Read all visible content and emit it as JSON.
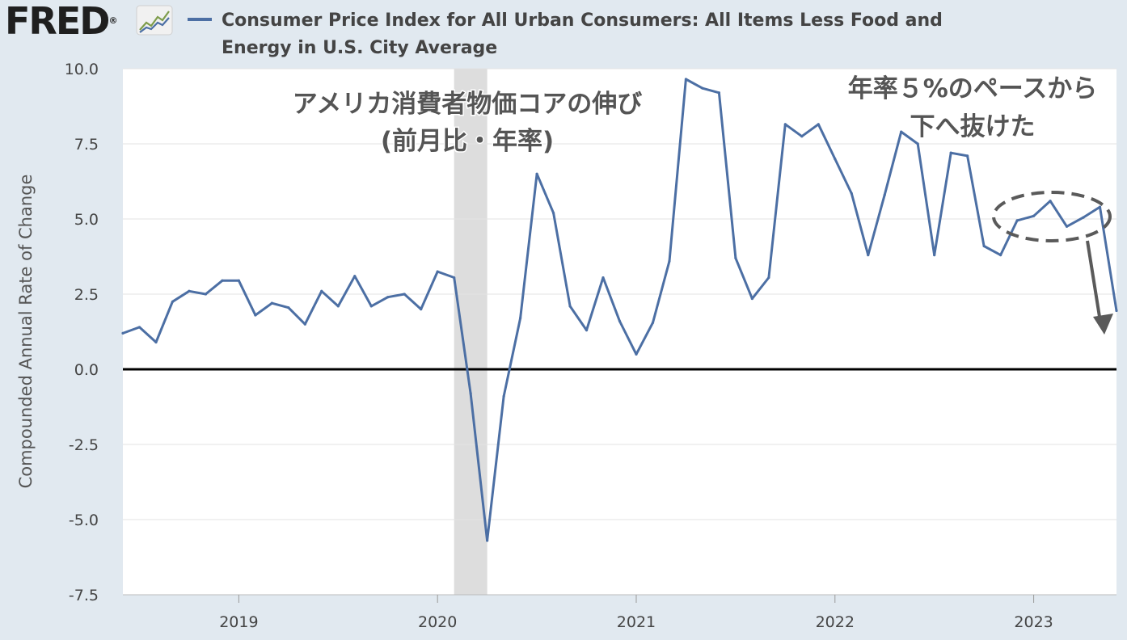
{
  "brand": {
    "logo_text": "FRED",
    "registered_mark": "®",
    "logo_icon": "line-graph-icon"
  },
  "legend": {
    "series_name": "Consumer Price Index for All Urban Consumers: All Items Less Food and Energy in U.S. City Average"
  },
  "colors": {
    "series": "#4c6fa4",
    "recession_shading": "#dddddd",
    "zero_line": "#000000",
    "grid": "#e3e3e3",
    "page_background": "#e1e9f0",
    "annotation": "#555555"
  },
  "chart_data": {
    "type": "line",
    "ylabel": "Compounded Annual Rate of Change",
    "xlabel": "",
    "ylim": [
      -7.5,
      10.0
    ],
    "yticks": [
      "10.0",
      "7.5",
      "5.0",
      "2.5",
      "0.0",
      "-2.5",
      "-5.0",
      "-7.5"
    ],
    "xticks": [
      "2019",
      "2020",
      "2021",
      "2022",
      "2023"
    ],
    "grid": true,
    "x_start": "2018-06",
    "x_end": "2023-06",
    "recession": {
      "start": "2020-02",
      "end": "2020-04"
    },
    "series": [
      {
        "name": "Consumer Price Index for All Urban Consumers: All Items Less Food and Energy in U.S. City Average",
        "points": [
          [
            "2018-06",
            1.2
          ],
          [
            "2018-07",
            1.4
          ],
          [
            "2018-08",
            0.9
          ],
          [
            "2018-09",
            2.25
          ],
          [
            "2018-10",
            2.6
          ],
          [
            "2018-11",
            2.5
          ],
          [
            "2018-12",
            2.95
          ],
          [
            "2019-01",
            2.95
          ],
          [
            "2019-02",
            1.8
          ],
          [
            "2019-03",
            2.2
          ],
          [
            "2019-04",
            2.05
          ],
          [
            "2019-05",
            1.5
          ],
          [
            "2019-06",
            2.6
          ],
          [
            "2019-07",
            2.1
          ],
          [
            "2019-08",
            3.1
          ],
          [
            "2019-09",
            2.1
          ],
          [
            "2019-10",
            2.4
          ],
          [
            "2019-11",
            2.5
          ],
          [
            "2019-12",
            2.0
          ],
          [
            "2020-01",
            3.25
          ],
          [
            "2020-02",
            3.05
          ],
          [
            "2020-03",
            -0.8
          ],
          [
            "2020-04",
            -5.7
          ],
          [
            "2020-05",
            -0.9
          ],
          [
            "2020-06",
            1.7
          ],
          [
            "2020-07",
            6.5
          ],
          [
            "2020-08",
            5.2
          ],
          [
            "2020-09",
            2.1
          ],
          [
            "2020-10",
            1.3
          ],
          [
            "2020-11",
            3.05
          ],
          [
            "2020-12",
            1.6
          ],
          [
            "2021-01",
            0.5
          ],
          [
            "2021-02",
            1.55
          ],
          [
            "2021-03",
            3.6
          ],
          [
            "2021-04",
            9.65
          ],
          [
            "2021-05",
            9.35
          ],
          [
            "2021-06",
            9.2
          ],
          [
            "2021-07",
            3.7
          ],
          [
            "2021-08",
            2.35
          ],
          [
            "2021-09",
            3.05
          ],
          [
            "2021-10",
            8.15
          ],
          [
            "2021-11",
            7.75
          ],
          [
            "2021-12",
            8.15
          ],
          [
            "2022-01",
            7.0
          ],
          [
            "2022-02",
            5.85
          ],
          [
            "2022-03",
            3.8
          ],
          [
            "2022-04",
            5.8
          ],
          [
            "2022-05",
            7.9
          ],
          [
            "2022-06",
            7.5
          ],
          [
            "2022-07",
            3.8
          ],
          [
            "2022-08",
            7.2
          ],
          [
            "2022-09",
            7.1
          ],
          [
            "2022-10",
            4.1
          ],
          [
            "2022-11",
            3.8
          ],
          [
            "2022-12",
            4.95
          ],
          [
            "2023-01",
            5.1
          ],
          [
            "2023-02",
            5.6
          ],
          [
            "2023-03",
            4.75
          ],
          [
            "2023-04",
            5.05
          ],
          [
            "2023-05",
            5.4
          ],
          [
            "2023-06",
            1.95
          ]
        ]
      }
    ],
    "annotations": [
      {
        "lines": [
          "アメリカ消費者物価コアの伸び",
          "(前月比・年率)"
        ]
      },
      {
        "lines": [
          "年率５%のペースから",
          "下へ抜けた"
        ]
      }
    ]
  }
}
